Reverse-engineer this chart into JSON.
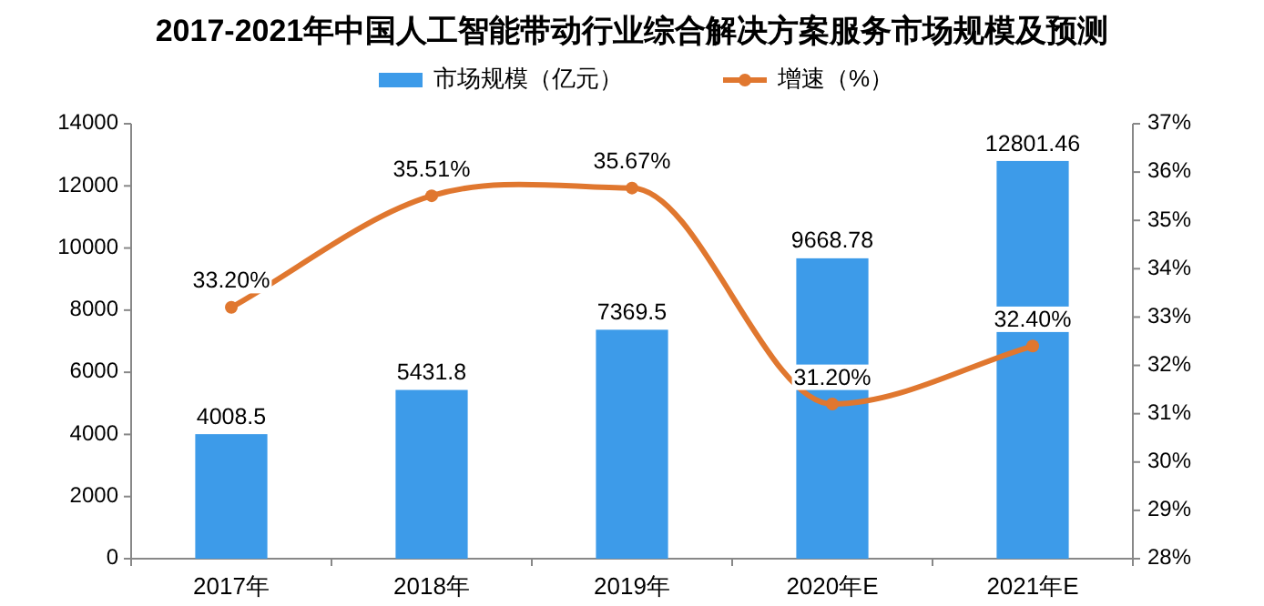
{
  "chart_data": {
    "type": "bar",
    "title": "2017-2021年中国人工智能带动行业综合解决方案服务市场规模及预测",
    "categories": [
      "2017年",
      "2018年",
      "2019年",
      "2020年E",
      "2021年E"
    ],
    "series": [
      {
        "name": "市场规模（亿元）",
        "color": "#3d9be9",
        "values": [
          4008.5,
          5431.8,
          7369.5,
          9668.78,
          12801.46
        ],
        "value_labels": [
          "4008.5",
          "5431.8",
          "7369.5",
          "9668.78",
          "12801.46"
        ]
      },
      {
        "name": "增速（%）",
        "type": "line",
        "axis": "y2",
        "color": "#e0772f",
        "marker": "circle",
        "values": [
          33.2,
          35.51,
          35.67,
          31.2,
          32.4
        ],
        "value_labels": [
          "33.20%",
          "35.51%",
          "35.67%",
          "31.20%",
          "32.40%"
        ]
      }
    ],
    "ylim": [
      0,
      14000
    ],
    "yticks": [
      0,
      2000,
      4000,
      6000,
      8000,
      10000,
      12000,
      14000
    ],
    "y2lim": [
      28,
      37
    ],
    "y2ticks": [
      {
        "value": 28,
        "label": "28%"
      },
      {
        "value": 29,
        "label": "29%"
      },
      {
        "value": 30,
        "label": "30%"
      },
      {
        "value": 31,
        "label": "31%"
      },
      {
        "value": 32,
        "label": "32%"
      },
      {
        "value": 33,
        "label": "33%"
      },
      {
        "value": 34,
        "label": "34%"
      },
      {
        "value": 35,
        "label": "35%"
      },
      {
        "value": 36,
        "label": "36%"
      },
      {
        "value": 37,
        "label": "37%"
      }
    ],
    "legend": "top",
    "grid": false
  }
}
